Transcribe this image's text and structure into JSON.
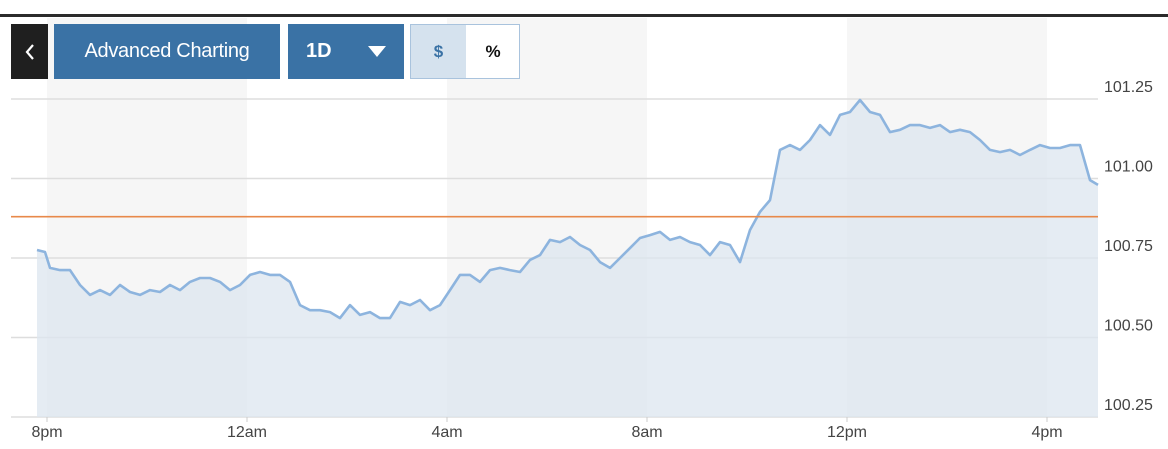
{
  "toolbar": {
    "advanced": "Advanced Charting",
    "range": "1D",
    "dollar": "$",
    "percent": "%"
  },
  "chart_data": {
    "type": "line",
    "x": [
      -0.2,
      -0.04,
      0.06,
      0.26,
      0.46,
      0.66,
      0.86,
      1.06,
      1.26,
      1.46,
      1.66,
      1.86,
      2.06,
      2.26,
      2.46,
      2.66,
      2.86,
      3.06,
      3.26,
      3.46,
      3.66,
      3.86,
      4.06,
      4.26,
      4.46,
      4.66,
      4.86,
      5.06,
      5.26,
      5.46,
      5.66,
      5.86,
      6.06,
      6.26,
      6.46,
      6.66,
      6.86,
      7.06,
      7.26,
      7.46,
      7.66,
      7.86,
      8.06,
      8.26,
      8.46,
      8.66,
      8.86,
      9.06,
      9.26,
      9.46,
      9.66,
      9.86,
      10.06,
      10.26,
      10.46,
      10.66,
      10.86,
      11.06,
      11.26,
      11.46,
      11.66,
      11.86,
      12.06,
      12.26,
      12.46,
      12.66,
      12.86,
      13.06,
      13.26,
      13.46,
      13.66,
      13.86,
      14.06,
      14.26,
      14.46,
      14.66,
      14.86,
      15.06,
      15.26,
      15.46,
      15.66,
      15.86,
      16.06,
      16.26,
      16.46,
      16.66,
      16.86,
      17.06,
      17.26,
      17.46,
      17.66,
      17.86,
      18.06,
      18.26,
      18.46,
      18.66,
      18.86,
      19.06,
      19.26,
      19.46,
      19.66,
      19.86,
      20.06,
      20.26,
      20.46,
      20.66,
      20.86,
      21.02
    ],
    "series": [
      {
        "color": "#8db4de",
        "fill": "#dce6ef",
        "values": [
          100.775,
          100.769,
          100.719,
          100.712,
          100.712,
          100.665,
          100.634,
          100.649,
          100.634,
          100.665,
          100.643,
          100.634,
          100.649,
          100.643,
          100.665,
          100.649,
          100.675,
          100.687,
          100.687,
          100.675,
          100.649,
          100.665,
          100.697,
          100.706,
          100.697,
          100.697,
          100.675,
          100.602,
          100.586,
          100.586,
          100.58,
          100.561,
          100.602,
          100.571,
          100.58,
          100.561,
          100.561,
          100.612,
          100.602,
          100.618,
          100.586,
          100.602,
          100.649,
          100.697,
          100.697,
          100.675,
          100.712,
          100.719,
          100.712,
          100.706,
          100.744,
          100.759,
          100.807,
          100.8,
          100.816,
          100.791,
          100.775,
          100.737,
          100.719,
          100.75,
          100.781,
          100.813,
          100.822,
          100.832,
          100.807,
          100.816,
          100.8,
          100.791,
          100.759,
          100.8,
          100.791,
          100.737,
          100.838,
          100.895,
          100.932,
          101.09,
          101.105,
          101.09,
          101.121,
          101.168,
          101.137,
          101.2,
          101.209,
          101.247,
          101.209,
          101.2,
          101.146,
          101.153,
          101.168,
          101.168,
          101.159,
          101.168,
          101.146,
          101.153,
          101.146,
          101.121,
          101.09,
          101.083,
          101.09,
          101.074,
          101.09,
          101.105,
          101.096,
          101.096,
          101.105,
          101.105,
          100.995,
          100.98
        ]
      }
    ],
    "xlim": [
      -0.2,
      21.02
    ],
    "xticks": [
      {
        "value": 0,
        "label": "8pm"
      },
      {
        "value": 4,
        "label": "12am"
      },
      {
        "value": 8,
        "label": "4am"
      },
      {
        "value": 12,
        "label": "8am"
      },
      {
        "value": 16,
        "label": "12pm"
      },
      {
        "value": 20,
        "label": "4pm"
      }
    ],
    "ylim": [
      100.25,
      101.5
    ],
    "yticks": [
      100.25,
      {
        "value": 100.5,
        "label": "100.50"
      },
      100.75,
      {
        "value": 101,
        "label": "101.00"
      },
      101.25
    ],
    "grid": true,
    "alternate_shading": true,
    "reference_line": {
      "value": 100.88,
      "color": "#e8894a"
    }
  }
}
